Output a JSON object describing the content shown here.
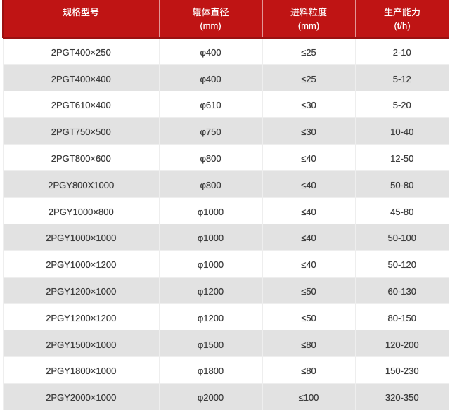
{
  "table": {
    "columns": [
      {
        "label": "规格型号",
        "unit": ""
      },
      {
        "label": "辊体直径",
        "unit": "(mm)"
      },
      {
        "label": "进料粒度",
        "unit": "(mm)"
      },
      {
        "label": "生产能力",
        "unit": "(t/h)"
      }
    ],
    "rows": [
      [
        "2PGT400×250",
        "φ400",
        "≤25",
        "2-10"
      ],
      [
        "2PGT400×400",
        "φ400",
        "≤25",
        "5-12"
      ],
      [
        "2PGT610×400",
        "φ610",
        "≤30",
        "5-20"
      ],
      [
        "2PGT750×500",
        "φ750",
        "≤30",
        "10-40"
      ],
      [
        "2PGT800×600",
        "φ800",
        "≤40",
        "12-50"
      ],
      [
        "2PGY800X1000",
        "φ800",
        "≤40",
        "50-80"
      ],
      [
        "2PGY1000×800",
        "φ1000",
        "≤40",
        "45-80"
      ],
      [
        "2PGY1000×1000",
        "φ1000",
        "≤40",
        "50-100"
      ],
      [
        "2PGY1000×1200",
        "φ1000",
        "≤40",
        "50-120"
      ],
      [
        "2PGY1200×1000",
        "φ1200",
        "≤50",
        "60-130"
      ],
      [
        "2PGY1200×1200",
        "φ1200",
        "≤50",
        "80-150"
      ],
      [
        "2PGY1500×1000",
        "φ1500",
        "≤80",
        "120-200"
      ],
      [
        "2PGY1800×1000",
        "φ1800",
        "≤80",
        "150-230"
      ],
      [
        "2PGY2000×1000",
        "φ2000",
        "≤100",
        "320-350"
      ]
    ]
  },
  "chart_data": {
    "type": "table",
    "title": "",
    "columns": [
      "规格型号",
      "辊体直径 (mm)",
      "进料粒度 (mm)",
      "生产能力 (t/h)"
    ],
    "rows": [
      [
        "2PGT400×250",
        "φ400",
        "≤25",
        "2-10"
      ],
      [
        "2PGT400×400",
        "φ400",
        "≤25",
        "5-12"
      ],
      [
        "2PGT610×400",
        "φ610",
        "≤30",
        "5-20"
      ],
      [
        "2PGT750×500",
        "φ750",
        "≤30",
        "10-40"
      ],
      [
        "2PGT800×600",
        "φ800",
        "≤40",
        "12-50"
      ],
      [
        "2PGY800X1000",
        "φ800",
        "≤40",
        "50-80"
      ],
      [
        "2PGY1000×800",
        "φ1000",
        "≤40",
        "45-80"
      ],
      [
        "2PGY1000×1000",
        "φ1000",
        "≤40",
        "50-100"
      ],
      [
        "2PGY1000×1200",
        "φ1000",
        "≤40",
        "50-120"
      ],
      [
        "2PGY1200×1000",
        "φ1200",
        "≤50",
        "60-130"
      ],
      [
        "2PGY1200×1200",
        "φ1200",
        "≤50",
        "80-150"
      ],
      [
        "2PGY1500×1000",
        "φ1500",
        "≤80",
        "120-200"
      ],
      [
        "2PGY1800×1000",
        "φ1800",
        "≤80",
        "150-230"
      ],
      [
        "2PGY2000×1000",
        "φ2000",
        "≤100",
        "320-350"
      ]
    ]
  },
  "colors": {
    "header_background": "#bf1414",
    "header_border_dark": "#8f0f0f",
    "header_text": "#ffffff",
    "row_alt_background": "#e2e2e2",
    "row_background": "#ffffff",
    "cell_border": "#eeeeee",
    "body_text": "#3c3c3c"
  }
}
